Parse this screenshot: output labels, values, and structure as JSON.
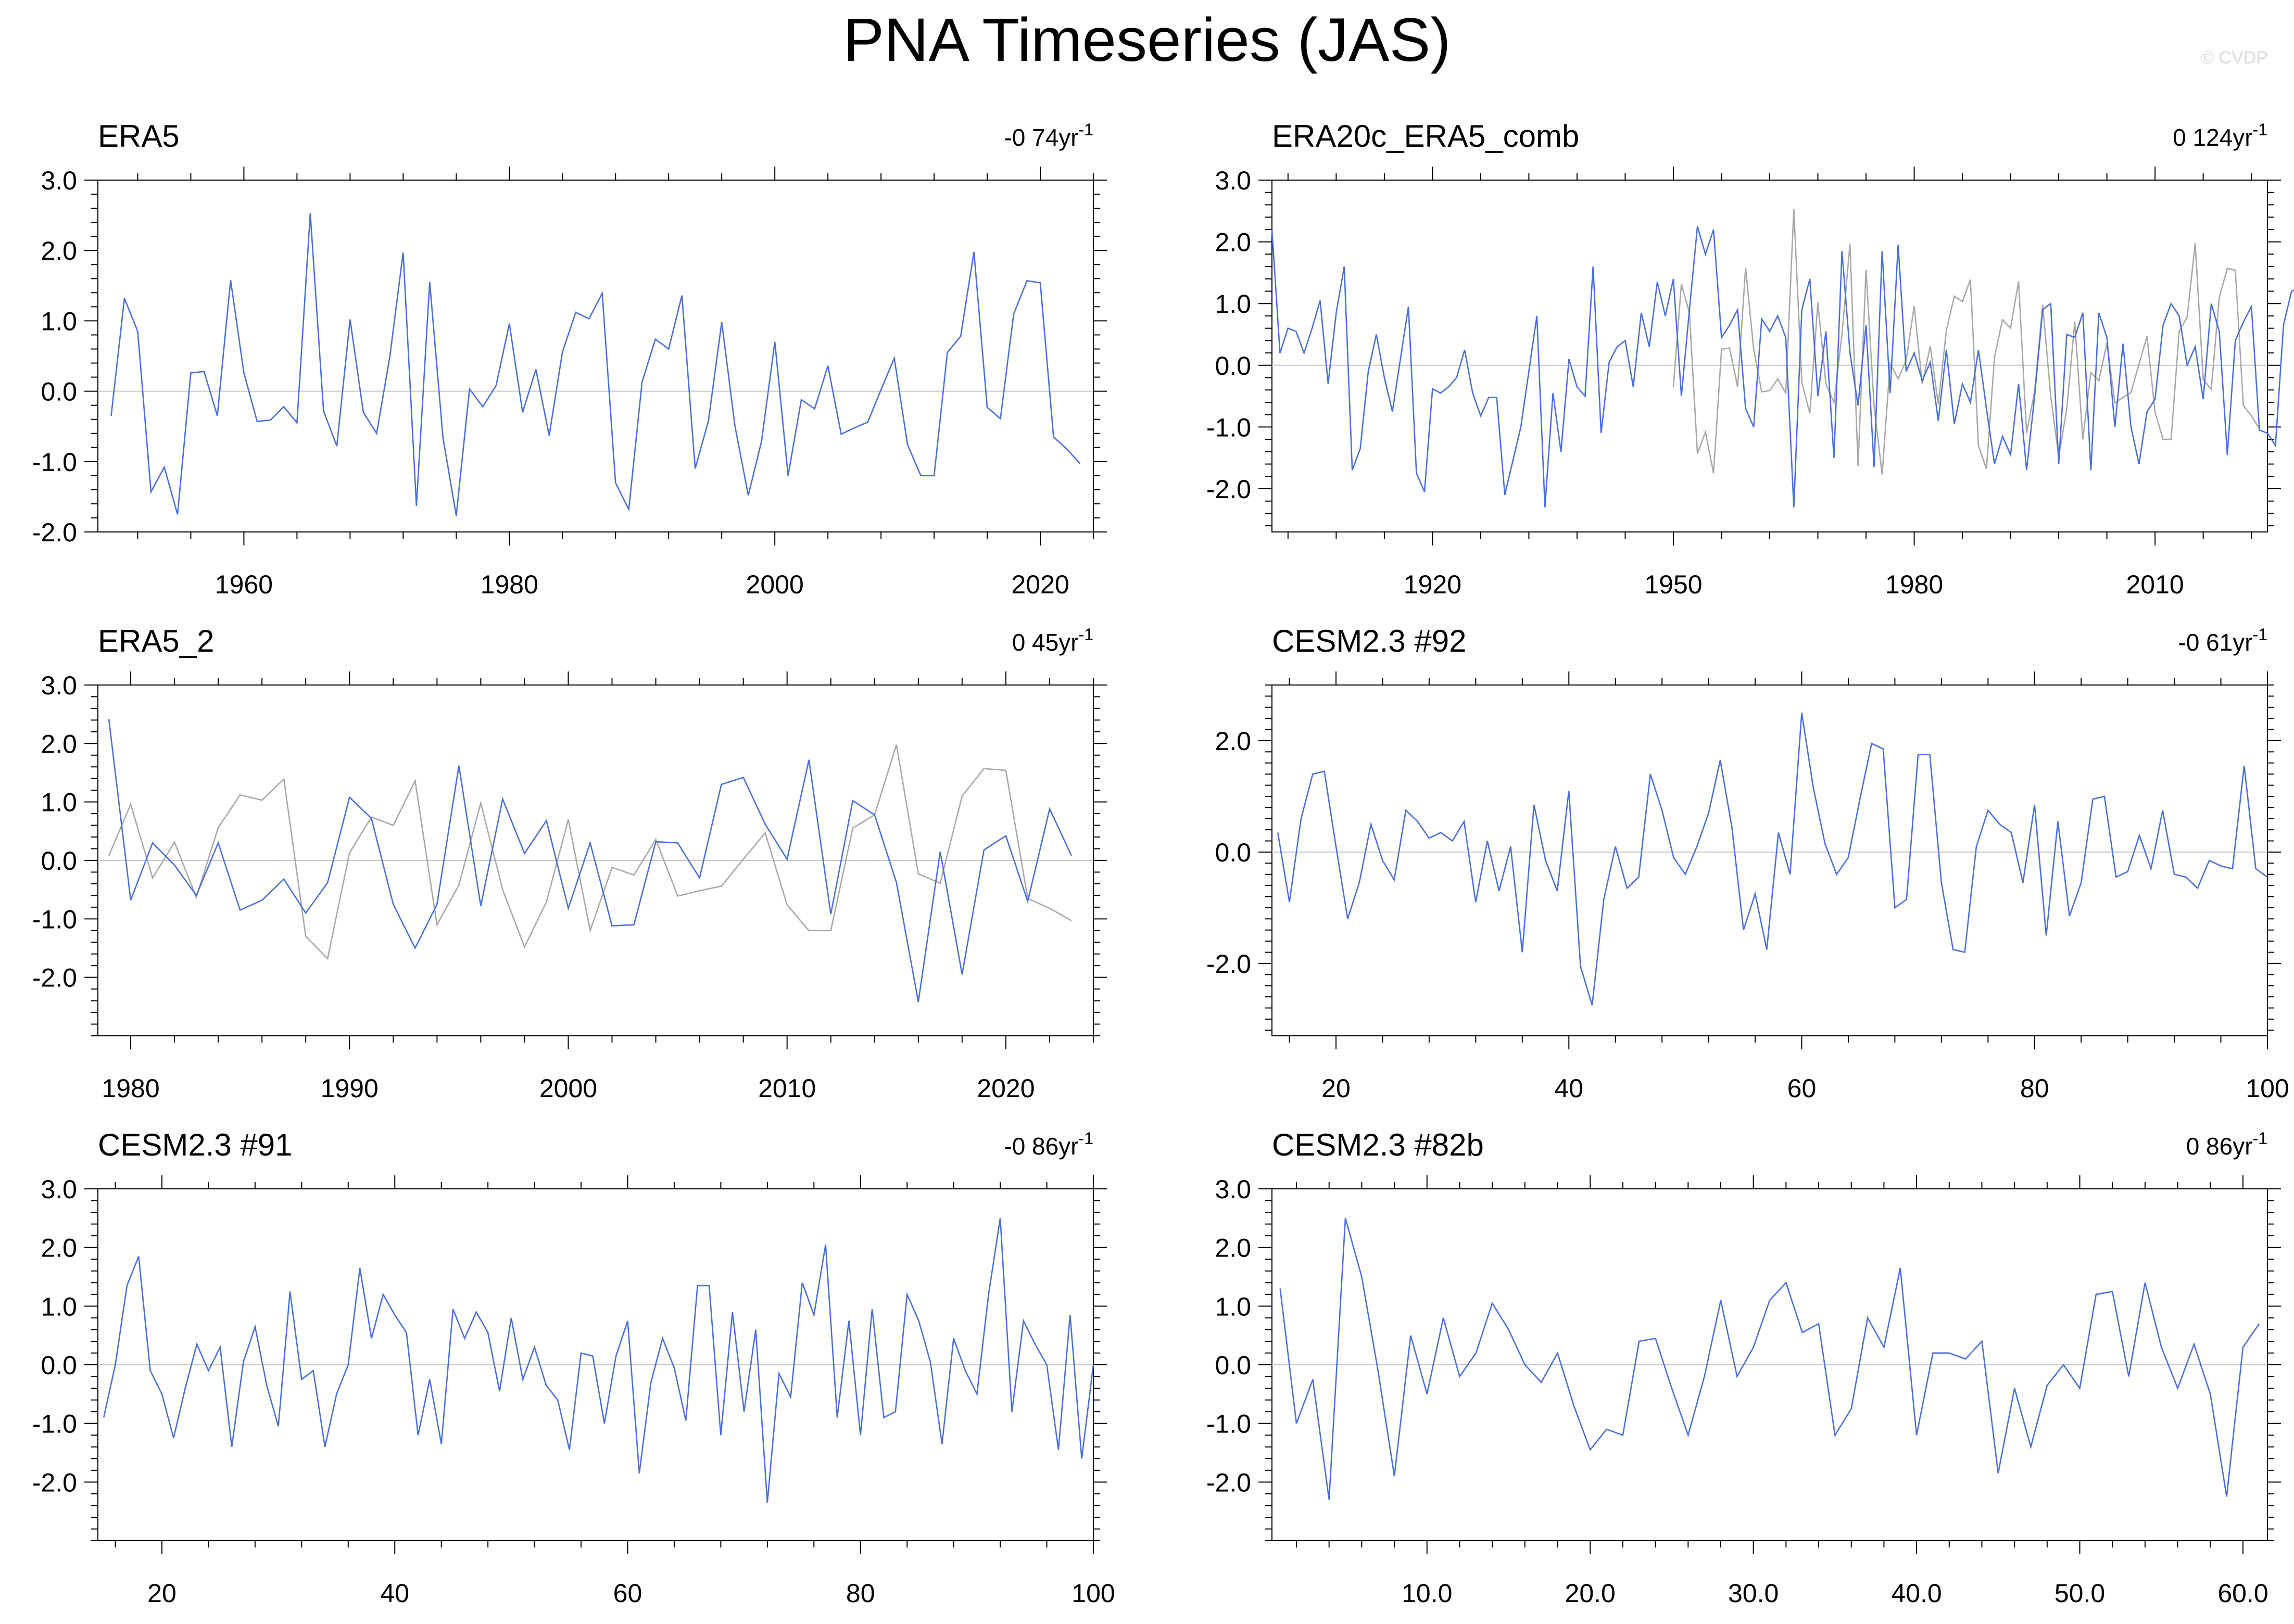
{
  "title": "PNA Timeseries (JAS)",
  "watermark": "© CVDP",
  "colors": {
    "primary": "#4a6fd8",
    "secondary": "#a8a8a8",
    "zero_line": "#c8c8c8",
    "axis": "#000000"
  },
  "chart_data": [
    {
      "type": "line",
      "title": "ERA5",
      "trend_label": "-0 74yr",
      "trend_sup": "-1",
      "xlim": [
        1949,
        2024
      ],
      "ylim": [
        -2.0,
        3.0
      ],
      "yticks": [
        3.0,
        2.0,
        1.0,
        0.0,
        -1.0,
        -2.0
      ],
      "ytick_labels": [
        "3.0",
        "2.0",
        "1.0",
        "0.0",
        "-1.0",
        "-2.0"
      ],
      "xticks": [
        1960,
        1980,
        2000,
        2020
      ],
      "xtick_labels": [
        "1960",
        "1980",
        "2000",
        "2020"
      ],
      "series": [
        {
          "x_start": 1950,
          "x_step": 1,
          "values": [
            -0.35,
            1.32,
            0.85,
            -1.43,
            -1.08,
            -1.75,
            0.26,
            0.28,
            -0.35,
            1.58,
            0.26,
            -0.43,
            -0.41,
            -0.22,
            -0.45,
            2.53,
            -0.28,
            -0.78,
            1.02,
            -0.3,
            -0.6,
            0.5,
            1.97,
            -1.63,
            1.55,
            -0.66,
            -1.77,
            0.03,
            -0.22,
            0.08,
            0.96,
            -0.3,
            0.31,
            -0.63,
            0.56,
            1.12,
            1.03,
            1.39,
            -1.3,
            -1.68,
            0.13,
            0.74,
            0.6,
            1.36,
            -1.1,
            -0.42,
            0.98,
            -0.5,
            -1.48,
            -0.71,
            0.7,
            -1.2,
            -0.12,
            -0.25,
            0.36,
            -0.61,
            -0.52,
            -0.44,
            0.02,
            0.47,
            -0.76,
            -1.2,
            -1.2,
            0.55,
            0.78,
            1.98,
            -0.23,
            -0.39,
            1.1,
            1.57,
            1.54,
            -0.65,
            -0.82,
            -1.03
          ]
        }
      ]
    },
    {
      "type": "line",
      "title": "ERA20c_ERA5_comb",
      "trend_label": "0 124yr",
      "trend_sup": "-1",
      "xlim": [
        1900,
        2024
      ],
      "ylim": [
        -2.7,
        3.0
      ],
      "yticks": [
        3.0,
        2.0,
        1.0,
        0.0,
        -1.0,
        -2.0
      ],
      "ytick_labels": [
        "3.0",
        "2.0",
        "1.0",
        "0.0",
        "-1.0",
        "-2.0"
      ],
      "xticks": [
        1920,
        1950,
        1980,
        2010
      ],
      "xtick_labels": [
        "1920",
        "1950",
        "1980",
        "2010"
      ],
      "series": [
        {
          "x_start": 1900,
          "x_step": 1,
          "values": [
            2.2,
            0.2,
            0.6,
            0.55,
            0.2,
            0.6,
            1.05,
            -0.3,
            0.85,
            1.6,
            -1.7,
            -1.35,
            -0.1,
            0.5,
            -0.2,
            -0.75,
            0.1,
            0.95,
            -1.75,
            -2.05,
            -0.38,
            -0.45,
            -0.35,
            -0.2,
            0.25,
            -0.45,
            -0.82,
            -0.52,
            -0.52,
            -2.1,
            -1.55,
            -1.0,
            -0.1,
            0.8,
            -2.3,
            -0.45,
            -1.4,
            0.1,
            -0.35,
            -0.5,
            1.6,
            -1.1,
            0.05,
            0.3,
            0.4,
            -0.35,
            0.85,
            0.3,
            1.35,
            0.8,
            1.4,
            -0.5,
            0.9,
            2.25,
            1.8,
            2.2,
            0.45,
            0.65,
            0.9,
            -0.7,
            -1.0,
            0.75,
            0.55,
            0.8,
            0.45,
            -2.3,
            0.9,
            1.4,
            -0.5,
            0.55,
            -1.5,
            1.85,
            0.2,
            -0.65,
            0.65,
            -1.65,
            1.85,
            -0.45,
            1.95,
            -0.1,
            0.2,
            -0.25,
            0.05,
            -0.9,
            0.25,
            -0.95,
            -0.3,
            -0.6,
            0.25,
            -0.7,
            -1.6,
            -1.15,
            -1.45,
            -0.3,
            -1.7,
            -0.5,
            0.9,
            1.0,
            -1.6,
            0.5,
            0.45,
            0.85,
            -1.7,
            0.85,
            0.45,
            -1.0,
            0.35,
            -1.0,
            -1.6,
            -0.75,
            -0.55,
            0.65,
            1.0,
            0.8,
            0.0,
            0.3,
            -0.55,
            1.0,
            0.55,
            -1.45,
            0.4,
            0.7,
            0.95,
            -1.05,
            -1.1,
            -1.3,
            0.65,
            1.2,
            1.25
          ]
        },
        {
          "x_start": 1950,
          "x_step": 1,
          "values": [
            -0.35,
            1.32,
            0.85,
            -1.43,
            -1.08,
            -1.75,
            0.26,
            0.28,
            -0.35,
            1.58,
            0.26,
            -0.43,
            -0.41,
            -0.22,
            -0.45,
            2.53,
            -0.28,
            -0.78,
            1.02,
            -0.3,
            -0.6,
            0.5,
            1.97,
            -1.63,
            1.55,
            -0.66,
            -1.77,
            0.03,
            -0.22,
            0.08,
            0.96,
            -0.3,
            0.31,
            -0.63,
            0.56,
            1.12,
            1.03,
            1.39,
            -1.3,
            -1.68,
            0.13,
            0.74,
            0.6,
            1.36,
            -1.1,
            -0.42,
            0.98,
            -0.5,
            -1.48,
            -0.71,
            0.7,
            -1.2,
            -0.12,
            -0.25,
            0.36,
            -0.61,
            -0.52,
            -0.44,
            0.02,
            0.47,
            -0.76,
            -1.2,
            -1.2,
            0.55,
            0.78,
            1.98,
            -0.23,
            -0.39,
            1.1,
            1.57,
            1.54,
            -0.65,
            -0.82,
            -1.03
          ]
        }
      ]
    },
    {
      "type": "line",
      "title": "ERA5_2",
      "trend_label": "0 45yr",
      "trend_sup": "-1",
      "xlim": [
        1978.5,
        2024
      ],
      "ylim": [
        -3.0,
        3.0
      ],
      "yticks": [
        3.0,
        2.0,
        1.0,
        0.0,
        -1.0,
        -2.0
      ],
      "ytick_labels": [
        "3.0",
        "2.0",
        "1.0",
        "0.0",
        "-1.0",
        "-2.0"
      ],
      "xticks": [
        1980,
        1990,
        2000,
        2010,
        2020
      ],
      "xtick_labels": [
        "1980",
        "1990",
        "2000",
        "2010",
        "2020"
      ],
      "series": [
        {
          "x_start": 1979,
          "x_step": 1,
          "values": [
            2.42,
            -0.68,
            0.3,
            -0.08,
            -0.6,
            0.3,
            -0.85,
            -0.68,
            -0.32,
            -0.9,
            -0.38,
            1.08,
            0.72,
            -0.75,
            -1.5,
            -0.75,
            1.62,
            -0.78,
            1.05,
            0.12,
            0.68,
            -0.82,
            0.3,
            -1.12,
            -1.1,
            0.32,
            0.3,
            -0.3,
            1.3,
            1.42,
            0.62,
            0.02,
            1.72,
            -0.92,
            1.02,
            0.78,
            -0.38,
            -2.42,
            0.15,
            -1.95,
            0.18,
            0.42,
            -0.7,
            0.88,
            0.08
          ]
        },
        {
          "x_start": 1979,
          "x_step": 1,
          "values": [
            0.08,
            0.96,
            -0.3,
            0.31,
            -0.63,
            0.56,
            1.12,
            1.03,
            1.39,
            -1.3,
            -1.68,
            0.13,
            0.74,
            0.6,
            1.36,
            -1.1,
            -0.42,
            0.98,
            -0.5,
            -1.48,
            -0.71,
            0.7,
            -1.2,
            -0.12,
            -0.25,
            0.36,
            -0.61,
            -0.52,
            -0.44,
            0.02,
            0.47,
            -0.76,
            -1.2,
            -1.2,
            0.55,
            0.78,
            1.98,
            -0.23,
            -0.39,
            1.1,
            1.57,
            1.54,
            -0.65,
            -0.82,
            -1.03
          ]
        }
      ]
    },
    {
      "type": "line",
      "title": "CESM2.3 #92",
      "trend_label": "-0 61yr",
      "trend_sup": "-1",
      "xlim": [
        14.5,
        100
      ],
      "ylim": [
        -3.3,
        3.0
      ],
      "yticks": [
        2.0,
        0.0,
        -2.0
      ],
      "ytick_labels": [
        "2.0",
        "0.0",
        "-2.0"
      ],
      "xticks": [
        20,
        40,
        60,
        80,
        100
      ],
      "xtick_labels": [
        "20",
        "40",
        "60",
        "80",
        "100"
      ],
      "series": [
        {
          "x_start": 15,
          "x_step": 1,
          "values": [
            0.35,
            -0.9,
            0.6,
            1.4,
            1.45,
            0.1,
            -1.2,
            -0.55,
            0.5,
            -0.15,
            -0.5,
            0.75,
            0.55,
            0.25,
            0.35,
            0.2,
            0.55,
            -0.9,
            0.2,
            -0.7,
            0.1,
            -1.8,
            0.85,
            -0.15,
            -0.7,
            1.1,
            -2.05,
            -2.75,
            -0.85,
            0.1,
            -0.65,
            -0.45,
            1.4,
            0.75,
            -0.1,
            -0.4,
            0.1,
            0.7,
            1.65,
            0.45,
            -1.4,
            -0.75,
            -1.75,
            0.35,
            -0.4,
            2.5,
            1.15,
            0.15,
            -0.4,
            -0.1,
            0.95,
            1.95,
            1.85,
            -1.0,
            -0.85,
            1.75,
            1.75,
            -0.55,
            -1.75,
            -1.8,
            0.1,
            0.75,
            0.5,
            0.35,
            -0.55,
            0.85,
            -1.5,
            0.55,
            -1.15,
            -0.55,
            0.95,
            1.0,
            -0.45,
            -0.35,
            0.3,
            -0.3,
            0.75,
            -0.4,
            -0.45,
            -0.65,
            -0.15,
            -0.25,
            -0.3,
            1.55,
            -0.3,
            -0.45
          ]
        }
      ]
    },
    {
      "type": "line",
      "title": "CESM2.3 #91",
      "trend_label": "-0 86yr",
      "trend_sup": "-1",
      "xlim": [
        14.5,
        100
      ],
      "ylim": [
        -3.0,
        3.0
      ],
      "yticks": [
        3.0,
        2.0,
        1.0,
        0.0,
        -1.0,
        -2.0
      ],
      "ytick_labels": [
        "3.0",
        "2.0",
        "1.0",
        "0.0",
        "-1.0",
        "-2.0"
      ],
      "xticks": [
        20,
        40,
        60,
        80,
        100
      ],
      "xtick_labels": [
        "20",
        "40",
        "60",
        "80",
        "100"
      ],
      "series": [
        {
          "x_start": 15,
          "x_step": 1,
          "values": [
            -0.9,
            0.0,
            1.35,
            1.85,
            -0.1,
            -0.5,
            -1.25,
            -0.4,
            0.35,
            -0.1,
            0.3,
            -1.4,
            0.05,
            0.65,
            -0.35,
            -1.05,
            1.25,
            -0.25,
            -0.1,
            -1.4,
            -0.5,
            0.0,
            1.65,
            0.45,
            1.2,
            0.85,
            0.55,
            -1.2,
            -0.25,
            -1.35,
            0.95,
            0.45,
            0.9,
            0.55,
            -0.45,
            0.8,
            -0.25,
            0.3,
            -0.35,
            -0.6,
            -1.45,
            0.2,
            0.15,
            -1.0,
            0.15,
            0.75,
            -1.85,
            -0.3,
            0.45,
            -0.05,
            -0.95,
            1.35,
            1.35,
            -1.2,
            0.9,
            -0.8,
            0.6,
            -2.35,
            -0.15,
            -0.55,
            1.4,
            0.85,
            2.05,
            -0.9,
            0.75,
            -1.2,
            0.95,
            -0.9,
            -0.8,
            1.2,
            0.75,
            0.05,
            -1.35,
            0.45,
            -0.1,
            -0.5,
            1.2,
            2.5,
            -0.8,
            0.75,
            0.35,
            0.0,
            -1.45,
            0.85,
            -1.6,
            0.0
          ]
        }
      ]
    },
    {
      "type": "line",
      "title": "CESM2.3 #82b",
      "trend_label": "0 86yr",
      "trend_sup": "-1",
      "xlim": [
        0.5,
        61.5
      ],
      "ylim": [
        -3.0,
        3.0
      ],
      "yticks": [
        3.0,
        2.0,
        1.0,
        0.0,
        -1.0,
        -2.0
      ],
      "ytick_labels": [
        "3.0",
        "2.0",
        "1.0",
        "0.0",
        "-1.0",
        "-2.0"
      ],
      "xticks": [
        10,
        20,
        30,
        40,
        50,
        60
      ],
      "xtick_labels": [
        "10.0",
        "20.0",
        "30.0",
        "40.0",
        "50.0",
        "60.0"
      ],
      "series": [
        {
          "x_start": 1,
          "x_step": 1,
          "values": [
            1.3,
            -1.0,
            -0.25,
            -2.3,
            2.5,
            1.5,
            -0.1,
            -1.9,
            0.5,
            -0.5,
            0.8,
            -0.2,
            0.2,
            1.05,
            0.6,
            0.0,
            -0.3,
            0.2,
            -0.7,
            -1.45,
            -1.1,
            -1.2,
            0.4,
            0.45,
            -0.4,
            -1.2,
            -0.2,
            1.1,
            -0.2,
            0.3,
            1.1,
            1.4,
            0.55,
            0.7,
            -1.2,
            -0.75,
            0.8,
            0.3,
            1.65,
            -1.2,
            0.2,
            0.2,
            0.1,
            0.4,
            -1.85,
            -0.4,
            -1.4,
            -0.35,
            0.0,
            -0.4,
            1.2,
            1.25,
            -0.2,
            1.4,
            0.3,
            -0.4,
            0.35,
            -0.5,
            -2.25,
            0.3,
            0.7
          ]
        }
      ]
    }
  ]
}
